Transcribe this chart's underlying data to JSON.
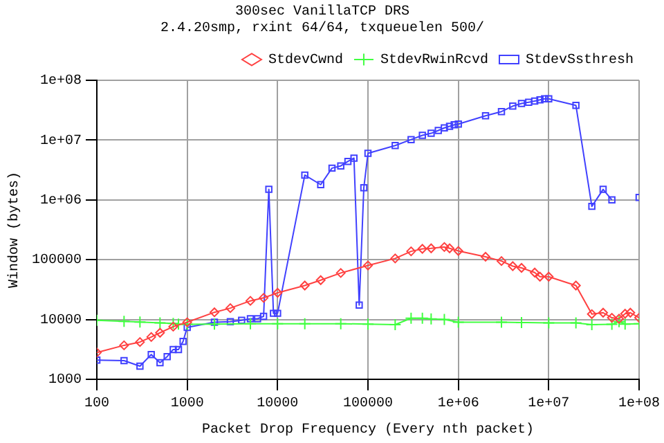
{
  "chart_data": {
    "type": "line",
    "title": "300sec VanillaTCP DRS",
    "subtitle": "2.4.20smp, rxint 64/64, txqueuelen 500/",
    "xlabel": "Packet Drop Frequency (Every nth packet)",
    "ylabel": "Window (bytes)",
    "log": "xy",
    "grid": true,
    "legend": "top right",
    "line_style": "solid",
    "xlim": [
      100,
      100000000
    ],
    "xticks": [
      100,
      1000,
      10000,
      100000,
      {
        "value": 1000000,
        "label": "1e+06"
      },
      {
        "value": 10000000,
        "label": "1e+07"
      },
      {
        "value": 100000000,
        "label": "1e+08"
      }
    ],
    "ylim": [
      1000,
      100000000
    ],
    "yticks": [
      1000,
      10000,
      100000,
      {
        "value": 1000000,
        "label": "1e+06"
      },
      {
        "value": 10000000,
        "label": "1e+07"
      },
      {
        "value": 100000000,
        "label": "1e+08"
      }
    ],
    "series": [
      {
        "name": "StdevCwnd",
        "color": "#ff4040",
        "marker": "diamond",
        "x": [
          100,
          200,
          300,
          400,
          500,
          700,
          1000,
          2000,
          3000,
          5000,
          7000,
          10000,
          20000,
          30000,
          50000,
          100000,
          200000,
          300000,
          400000,
          500000,
          700000,
          800000,
          1000000,
          2000000,
          3000000,
          4000000,
          5000000,
          7000000,
          8000000,
          10000000,
          20000000,
          30000000,
          40000000,
          50000000,
          60000000,
          70000000,
          80000000,
          100000000
        ],
        "values": [
          2800,
          3700,
          4200,
          5100,
          6000,
          7600,
          9000,
          13200,
          15500,
          20500,
          23000,
          28000,
          37000,
          45500,
          60000,
          80000,
          105000,
          138000,
          152000,
          155000,
          163000,
          155000,
          140000,
          112000,
          95000,
          78000,
          73000,
          61000,
          52000,
          52000,
          37000,
          12300,
          13000,
          10700,
          10300,
          12500,
          13000,
          10700
        ]
      },
      {
        "name": "StdevRwinRcvd",
        "color": "#40ff40",
        "marker": "cross",
        "x": [
          100,
          200,
          300,
          500,
          700,
          800,
          1000,
          2000,
          5000,
          10000,
          20000,
          50000,
          100000,
          200000,
          300000,
          400000,
          500000,
          700000,
          1000000,
          3000000,
          5000000,
          10000000,
          20000000,
          30000000,
          50000000,
          60000000,
          70000000,
          100000000
        ],
        "values": [
          9700,
          9300,
          9100,
          8800,
          8600,
          8400,
          8300,
          8400,
          8500,
          8500,
          8500,
          8500,
          8400,
          8200,
          10500,
          10500,
          10200,
          10000,
          9000,
          9000,
          8900,
          8800,
          8800,
          8200,
          8300,
          9200,
          8400,
          8500
        ]
      },
      {
        "name": "StdevSsthresh",
        "color": "#4040ff",
        "marker": "square",
        "x": [
          100,
          200,
          300,
          400,
          500,
          600,
          700,
          800,
          900,
          1000,
          2000,
          3000,
          4000,
          5000,
          6000,
          7000,
          8000,
          9000,
          10000,
          20000,
          30000,
          40000,
          50000,
          60000,
          70000,
          80000,
          90000,
          100000,
          200000,
          300000,
          400000,
          500000,
          600000,
          700000,
          800000,
          900000,
          1000000,
          2000000,
          3000000,
          4000000,
          5000000,
          6000000,
          7000000,
          8000000,
          9000000,
          10000000,
          20000000,
          30000000,
          40000000,
          50000000,
          60000000,
          100000000
        ],
        "values": [
          2100,
          2050,
          1660,
          2600,
          1900,
          2400,
          3150,
          3150,
          4300,
          7400,
          9000,
          9200,
          9700,
          10300,
          10300,
          11300,
          1500000,
          12700,
          12700,
          2600000,
          1800000,
          3400000,
          3700000,
          4400000,
          5000000,
          17400,
          1600000,
          6000000,
          8100000,
          10200000,
          12000000,
          13000000,
          14500000,
          16000000,
          17000000,
          18000000,
          18500000,
          25500000,
          30000000,
          37000000,
          41000000,
          43000000,
          45000000,
          47000000,
          49000000,
          49000000,
          38000000,
          780000,
          1500000,
          1000000,
          null,
          1100000
        ]
      }
    ]
  }
}
